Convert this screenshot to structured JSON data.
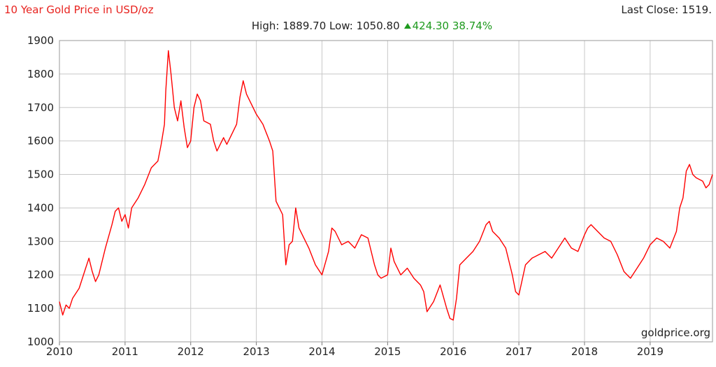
{
  "header": {
    "title": "10 Year Gold Price in USD/oz",
    "high_label": "High:",
    "high_value": "1889.70",
    "low_label": "Low:",
    "low_value": "1050.80",
    "change_value": "424.30",
    "change_pct": "38.74%",
    "last_close": "Last Close: 1519."
  },
  "colors": {
    "line": "#ff0000",
    "title": "#e8231f",
    "change": "#1e9a1e",
    "grid": "#c8c8c8"
  },
  "chart_data": {
    "type": "line",
    "title": "10 Year Gold Price in USD/oz",
    "xlabel": "",
    "ylabel": "",
    "ylim": [
      1000,
      1900
    ],
    "xlim": [
      2010.0,
      2019.95
    ],
    "yticks": [
      "1000",
      "1100",
      "1200",
      "1300",
      "1400",
      "1500",
      "1600",
      "1700",
      "1800",
      "1900"
    ],
    "xticks": [
      "2010",
      "2011",
      "2012",
      "2013",
      "2014",
      "2015",
      "2016",
      "2017",
      "2018",
      "2019"
    ],
    "grid": true,
    "source_label": "goldprice.org",
    "series": [
      {
        "x": [
          2010.0,
          2010.05,
          2010.1,
          2010.15,
          2010.2,
          2010.3,
          2010.4,
          2010.45,
          2010.5,
          2010.55,
          2010.6,
          2010.7,
          2010.8,
          2010.85,
          2010.9,
          2010.95,
          2011.0,
          2011.05,
          2011.1,
          2011.2,
          2011.3,
          2011.4,
          2011.5,
          2011.55,
          2011.6,
          2011.62,
          2011.66,
          2011.7,
          2011.75,
          2011.8,
          2011.85,
          2011.9,
          2011.95,
          2012.0,
          2012.05,
          2012.1,
          2012.15,
          2012.2,
          2012.3,
          2012.35,
          2012.4,
          2012.5,
          2012.55,
          2012.6,
          2012.7,
          2012.75,
          2012.8,
          2012.85,
          2012.9,
          2012.95,
          2013.0,
          2013.1,
          2013.2,
          2013.25,
          2013.3,
          2013.35,
          2013.4,
          2013.45,
          2013.5,
          2013.55,
          2013.6,
          2013.65,
          2013.7,
          2013.8,
          2013.9,
          2014.0,
          2014.1,
          2014.15,
          2014.2,
          2014.3,
          2014.4,
          2014.5,
          2014.6,
          2014.7,
          2014.8,
          2014.85,
          2014.9,
          2015.0,
          2015.05,
          2015.1,
          2015.2,
          2015.3,
          2015.4,
          2015.5,
          2015.55,
          2015.6,
          2015.7,
          2015.8,
          2015.9,
          2015.95,
          2016.0,
          2016.05,
          2016.1,
          2016.2,
          2016.3,
          2016.4,
          2016.5,
          2016.55,
          2016.6,
          2016.7,
          2016.8,
          2016.9,
          2016.95,
          2017.0,
          2017.1,
          2017.2,
          2017.3,
          2017.4,
          2017.5,
          2017.6,
          2017.7,
          2017.8,
          2017.9,
          2018.0,
          2018.05,
          2018.1,
          2018.2,
          2018.3,
          2018.4,
          2018.5,
          2018.6,
          2018.65,
          2018.7,
          2018.8,
          2018.9,
          2019.0,
          2019.1,
          2019.2,
          2019.3,
          2019.4,
          2019.45,
          2019.5,
          2019.55,
          2019.6,
          2019.65,
          2019.7,
          2019.8,
          2019.85,
          2019.9,
          2019.95
        ],
        "values": [
          1120,
          1080,
          1110,
          1100,
          1130,
          1160,
          1220,
          1250,
          1210,
          1180,
          1200,
          1280,
          1350,
          1390,
          1400,
          1360,
          1380,
          1340,
          1400,
          1430,
          1470,
          1520,
          1540,
          1590,
          1650,
          1750,
          1870,
          1800,
          1700,
          1660,
          1720,
          1640,
          1580,
          1600,
          1700,
          1740,
          1720,
          1660,
          1650,
          1600,
          1570,
          1610,
          1590,
          1610,
          1650,
          1730,
          1780,
          1740,
          1720,
          1700,
          1680,
          1650,
          1600,
          1570,
          1420,
          1400,
          1380,
          1230,
          1290,
          1300,
          1400,
          1340,
          1320,
          1280,
          1230,
          1200,
          1270,
          1340,
          1330,
          1290,
          1300,
          1280,
          1320,
          1310,
          1230,
          1200,
          1190,
          1200,
          1280,
          1240,
          1200,
          1220,
          1190,
          1170,
          1150,
          1090,
          1120,
          1170,
          1100,
          1070,
          1065,
          1130,
          1230,
          1250,
          1270,
          1300,
          1350,
          1360,
          1330,
          1310,
          1280,
          1200,
          1150,
          1140,
          1230,
          1250,
          1260,
          1270,
          1250,
          1280,
          1310,
          1280,
          1270,
          1320,
          1340,
          1350,
          1330,
          1310,
          1300,
          1260,
          1210,
          1200,
          1190,
          1220,
          1250,
          1290,
          1310,
          1300,
          1280,
          1330,
          1400,
          1430,
          1510,
          1530,
          1500,
          1490,
          1480,
          1460,
          1470,
          1500
        ]
      }
    ]
  }
}
